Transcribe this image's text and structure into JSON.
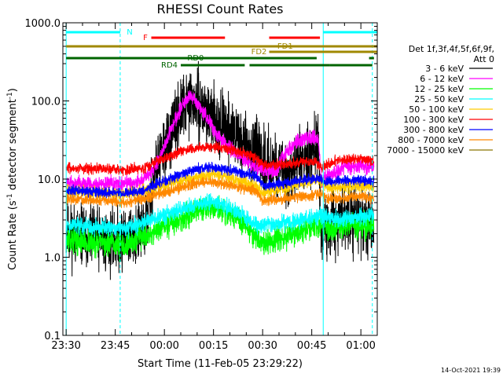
{
  "chart_data": {
    "type": "line",
    "title": "RHESSI Count Rates",
    "xlabel": "Start Time (11-Feb-05 23:29:22)",
    "ylabel": "Count Rate (s",
    "ylabel_sup1": "-1",
    "ylabel_mid": " detector segment",
    "ylabel_sup2": "-1",
    "ylabel_end": ")",
    "yscale": "log",
    "ylim": [
      0.1,
      1000
    ],
    "xlim_minutes": [
      -1,
      95
    ],
    "x_ticks": [
      {
        "m": 0,
        "label": "23:30"
      },
      {
        "m": 15,
        "label": "23:45"
      },
      {
        "m": 30,
        "label": "00:00"
      },
      {
        "m": 45,
        "label": "00:15"
      },
      {
        "m": 60,
        "label": "00:30"
      },
      {
        "m": 75,
        "label": "00:45"
      },
      {
        "m": 90,
        "label": "01:00"
      }
    ],
    "y_ticks": [
      {
        "v": 1000,
        "label": "1000.0"
      },
      {
        "v": 100,
        "label": "100.0"
      },
      {
        "v": 10,
        "label": "10.0"
      },
      {
        "v": 1,
        "label": "1.0"
      },
      {
        "v": 0.1,
        "label": "0.1"
      }
    ],
    "legend_header": [
      "Det 1f,3f,4f,5f,6f,9f,",
      "Att 0"
    ],
    "series": [
      {
        "name": "3 - 6 keV",
        "color": "#000000",
        "seed": 11,
        "noise": 0.3,
        "points": [
          [
            0,
            2.0
          ],
          [
            15,
            1.6
          ],
          [
            20,
            1.9
          ],
          [
            24,
            2.2
          ],
          [
            27,
            12
          ],
          [
            30,
            25
          ],
          [
            33,
            45
          ],
          [
            36,
            85
          ],
          [
            38,
            100
          ],
          [
            40,
            90
          ],
          [
            44,
            65
          ],
          [
            48,
            48
          ],
          [
            52,
            35
          ],
          [
            56,
            25
          ],
          [
            60,
            18
          ],
          [
            64,
            14
          ],
          [
            68,
            11
          ],
          [
            72,
            18
          ],
          [
            75,
            24
          ],
          [
            77,
            30
          ],
          [
            78,
            1.7
          ],
          [
            80,
            2.4
          ],
          [
            85,
            3.2
          ],
          [
            90,
            2.8
          ],
          [
            94,
            2.6
          ]
        ]
      },
      {
        "name": "6 - 12 keV",
        "color": "#ff00ff",
        "seed": 12,
        "noise": 0.07,
        "points": [
          [
            0,
            9
          ],
          [
            10,
            8.5
          ],
          [
            20,
            8.8
          ],
          [
            24,
            10
          ],
          [
            27,
            14
          ],
          [
            30,
            26
          ],
          [
            33,
            55
          ],
          [
            36,
            95
          ],
          [
            38,
            115
          ],
          [
            40,
            95
          ],
          [
            43,
            60
          ],
          [
            46,
            38
          ],
          [
            50,
            25
          ],
          [
            55,
            17
          ],
          [
            60,
            13
          ],
          [
            64,
            12
          ],
          [
            66,
            18
          ],
          [
            69,
            28
          ],
          [
            72,
            32
          ],
          [
            75,
            34
          ],
          [
            77,
            33
          ],
          [
            78,
            9
          ],
          [
            80,
            11
          ],
          [
            85,
            14
          ],
          [
            90,
            15
          ],
          [
            94,
            14
          ]
        ]
      },
      {
        "name": "12 - 25 keV",
        "color": "#00ff00",
        "seed": 13,
        "noise": 0.12,
        "points": [
          [
            0,
            1.7
          ],
          [
            10,
            1.5
          ],
          [
            18,
            1.45
          ],
          [
            26,
            2.0
          ],
          [
            34,
            3.0
          ],
          [
            40,
            4.0
          ],
          [
            44,
            4.5
          ],
          [
            48,
            4.0
          ],
          [
            54,
            2.8
          ],
          [
            58,
            1.8
          ],
          [
            60,
            1.5
          ],
          [
            64,
            1.6
          ],
          [
            70,
            2.0
          ],
          [
            76,
            2.6
          ],
          [
            82,
            2.3
          ],
          [
            88,
            2.6
          ],
          [
            94,
            2.5
          ]
        ]
      },
      {
        "name": "25 - 50 keV",
        "color": "#00ffff",
        "seed": 14,
        "noise": 0.08,
        "points": [
          [
            0,
            2.6
          ],
          [
            10,
            2.4
          ],
          [
            18,
            2.3
          ],
          [
            26,
            3.0
          ],
          [
            34,
            3.9
          ],
          [
            40,
            4.7
          ],
          [
            45,
            5.0
          ],
          [
            50,
            4.3
          ],
          [
            55,
            3.2
          ],
          [
            58,
            2.6
          ],
          [
            60,
            2.5
          ],
          [
            66,
            2.7
          ],
          [
            72,
            3.0
          ],
          [
            78,
            3.3
          ],
          [
            84,
            3.0
          ],
          [
            88,
            3.2
          ],
          [
            94,
            3.3
          ]
        ]
      },
      {
        "name": "50 - 100 keV",
        "color": "#ffcc00",
        "seed": 15,
        "noise": 0.06,
        "points": [
          [
            0,
            7.0
          ],
          [
            10,
            6.7
          ],
          [
            18,
            6.5
          ],
          [
            26,
            7.4
          ],
          [
            34,
            9.2
          ],
          [
            40,
            10.8
          ],
          [
            45,
            11.5
          ],
          [
            50,
            10.5
          ],
          [
            55,
            9.0
          ],
          [
            58,
            8.0
          ],
          [
            60,
            6.8
          ],
          [
            66,
            7.4
          ],
          [
            72,
            8.8
          ],
          [
            77,
            9.8
          ],
          [
            80,
            7.8
          ],
          [
            86,
            8.0
          ],
          [
            90,
            8.2
          ],
          [
            94,
            7.9
          ]
        ]
      },
      {
        "name": "100 - 300 keV",
        "color": "#ff0000",
        "seed": 16,
        "noise": 0.05,
        "points": [
          [
            0,
            14
          ],
          [
            10,
            13.5
          ],
          [
            18,
            13
          ],
          [
            24,
            14
          ],
          [
            28,
            17
          ],
          [
            32,
            20
          ],
          [
            36,
            23
          ],
          [
            40,
            25
          ],
          [
            44,
            26
          ],
          [
            48,
            25
          ],
          [
            52,
            23
          ],
          [
            55,
            21
          ],
          [
            58,
            18
          ],
          [
            60,
            15
          ],
          [
            64,
            15
          ],
          [
            70,
            16
          ],
          [
            76,
            17
          ],
          [
            78,
            14
          ],
          [
            82,
            17
          ],
          [
            86,
            18
          ],
          [
            90,
            18
          ],
          [
            94,
            17
          ]
        ]
      },
      {
        "name": "300 - 800 keV",
        "color": "#0000ff",
        "seed": 17,
        "noise": 0.05,
        "points": [
          [
            0,
            7.2
          ],
          [
            10,
            6.8
          ],
          [
            18,
            6.6
          ],
          [
            24,
            7.2
          ],
          [
            30,
            9.5
          ],
          [
            36,
            12
          ],
          [
            40,
            13.5
          ],
          [
            44,
            14.2
          ],
          [
            48,
            13.5
          ],
          [
            52,
            12.5
          ],
          [
            56,
            11.5
          ],
          [
            58,
            11
          ],
          [
            60,
            8.2
          ],
          [
            64,
            8.6
          ],
          [
            70,
            9.4
          ],
          [
            76,
            10.2
          ],
          [
            80,
            9.2
          ],
          [
            86,
            9.6
          ],
          [
            90,
            9.8
          ],
          [
            94,
            9.2
          ]
        ]
      },
      {
        "name": "800 - 7000 keV",
        "color": "#ff8800",
        "seed": 18,
        "noise": 0.05,
        "points": [
          [
            0,
            5.6
          ],
          [
            10,
            5.3
          ],
          [
            18,
            5.1
          ],
          [
            24,
            5.6
          ],
          [
            30,
            6.8
          ],
          [
            36,
            8.0
          ],
          [
            40,
            8.8
          ],
          [
            44,
            9.2
          ],
          [
            48,
            8.7
          ],
          [
            52,
            8.0
          ],
          [
            56,
            7.4
          ],
          [
            58,
            7.0
          ],
          [
            60,
            5.2
          ],
          [
            66,
            5.5
          ],
          [
            72,
            6.0
          ],
          [
            78,
            6.4
          ],
          [
            80,
            5.6
          ],
          [
            86,
            5.8
          ],
          [
            90,
            6.0
          ],
          [
            94,
            5.6
          ]
        ]
      },
      {
        "name": "7000 - 15000 keV",
        "color": "#8b7500",
        "seed": 19,
        "noise": 0.0,
        "points": []
      }
    ],
    "vertical_lines": [
      {
        "m": 0,
        "style": "solid"
      },
      {
        "m": 16.5,
        "style": "dashed"
      },
      {
        "m": 78.5,
        "style": "solid"
      },
      {
        "m": 93.5,
        "style": "dashed"
      }
    ],
    "flag_bars": [
      {
        "row": 0,
        "color": "#00ffff",
        "start": 0,
        "end": 16.5
      },
      {
        "row": 0,
        "color": "#00ffff",
        "start": 78.5,
        "end": 95
      },
      {
        "row": 1,
        "color": "#ff0000",
        "start": 26,
        "end": 48.5
      },
      {
        "row": 1,
        "color": "#ff0000",
        "start": 62,
        "end": 77.5
      },
      {
        "row": 2,
        "color": "#a08800",
        "start": 0,
        "end": 95
      },
      {
        "row": 3,
        "color": "#a08800",
        "start": 62,
        "end": 95
      },
      {
        "row": 4,
        "color": "#006400",
        "start": 0,
        "end": 76.5
      },
      {
        "row": 4,
        "color": "#006400",
        "start": 92.5,
        "end": 94
      },
      {
        "row": 5,
        "color": "#006400",
        "start": 35,
        "end": 54.5
      },
      {
        "row": 5,
        "color": "#006400",
        "start": 56,
        "end": 80.5
      },
      {
        "row": 6,
        "color": "#006400",
        "start": 35,
        "end": 54.5
      },
      {
        "row": 6,
        "color": "#006400",
        "start": 80.5,
        "end": 93.5
      }
    ],
    "flag_labels": [
      {
        "text": "N",
        "color": "#00ffff",
        "m": 18.5,
        "row": 0
      },
      {
        "text": "F",
        "color": "#ff0000",
        "m": 23.5,
        "row": 1
      },
      {
        "text": "FD1",
        "color": "#a08800",
        "m": 64.5,
        "row": 2
      },
      {
        "text": "FD2",
        "color": "#a08800",
        "m": 56.5,
        "row": 3
      },
      {
        "text": "RD0",
        "color": "#006400",
        "m": 37,
        "row": 4
      },
      {
        "text": "RD4",
        "color": "#006400",
        "m": 29,
        "row": 5
      }
    ]
  },
  "footer": {
    "timestamp": "14-Oct-2021 19:39"
  }
}
